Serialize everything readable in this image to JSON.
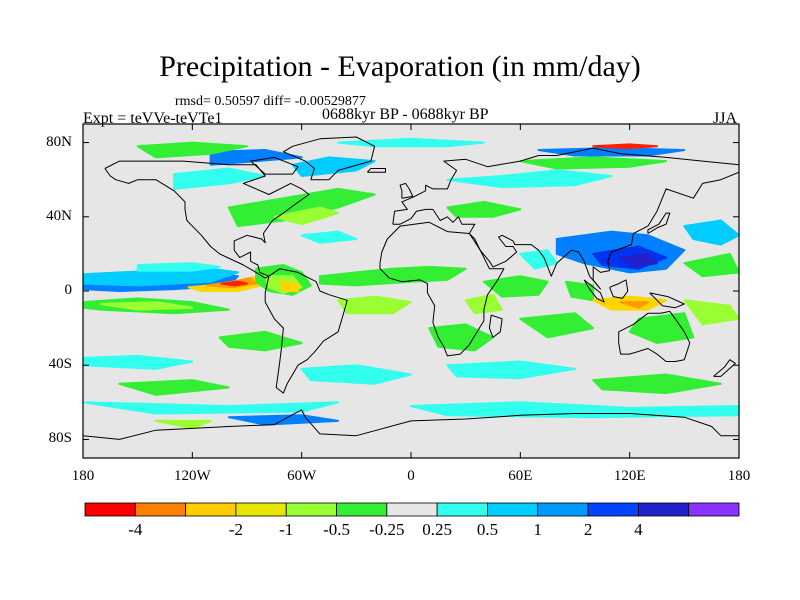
{
  "title": "Precipitation - Evaporation (in mm/day)",
  "stats": "rmsd= 0.50597 diff= -0.00529877",
  "experiment": "Expt = teVVe-teVTe1",
  "period": "0688kyr BP - 0688kyr BP",
  "season": "JJA",
  "colors": {
    "ocean_land_neutral": "#e6e6e6",
    "coastline": "#000000"
  },
  "map": {
    "projection": "cylindrical equidistant",
    "lon_range": [
      -180,
      180
    ],
    "lat_range": [
      -90,
      90
    ],
    "x_ticks": [
      {
        "value": -180,
        "label": "180"
      },
      {
        "value": -120,
        "label": "120W"
      },
      {
        "value": -60,
        "label": "60W"
      },
      {
        "value": 0,
        "label": "0"
      },
      {
        "value": 60,
        "label": "60E"
      },
      {
        "value": 120,
        "label": "120E"
      },
      {
        "value": 180,
        "label": "180"
      }
    ],
    "y_ticks": [
      {
        "value": 80,
        "label": "80N"
      },
      {
        "value": 40,
        "label": "40N"
      },
      {
        "value": 0,
        "label": "0"
      },
      {
        "value": -40,
        "label": "40S"
      },
      {
        "value": -80,
        "label": "80S"
      }
    ]
  },
  "colorbar": {
    "colors": [
      "#ff0000",
      "#ff8000",
      "#ffcc00",
      "#e6e600",
      "#99ff33",
      "#33ee33",
      "#e6e6e6",
      "#33ffee",
      "#00ccff",
      "#0099ff",
      "#0044ff",
      "#2222cc",
      "#8833ff"
    ],
    "labels": [
      "-4",
      "-2",
      "-1",
      "-0.5",
      "-0.25",
      "0.25",
      "0.5",
      "1",
      "2",
      "4"
    ],
    "label_boundaries": [
      1,
      3,
      4,
      5,
      6,
      7,
      8,
      9,
      10,
      11
    ]
  }
}
